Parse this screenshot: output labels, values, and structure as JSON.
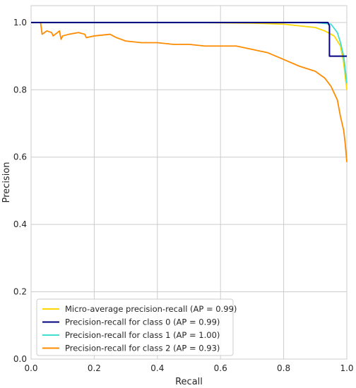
{
  "chart_data": {
    "type": "line",
    "title": "",
    "xlabel": "Recall",
    "ylabel": "Precision",
    "xlim": [
      0.0,
      1.0
    ],
    "ylim": [
      0.0,
      1.05
    ],
    "xticks": [
      "0.0",
      "0.2",
      "0.4",
      "0.6",
      "0.8",
      "1.0"
    ],
    "yticks": [
      "0.0",
      "0.2",
      "0.4",
      "0.6",
      "0.8",
      "1.0"
    ],
    "grid": true,
    "legend_position": "lower-left",
    "series": [
      {
        "name": "Micro-average precision-recall (AP = 0.99)",
        "color": "#ffd700",
        "x": [
          0.0,
          0.5,
          0.7,
          0.8,
          0.85,
          0.9,
          0.93,
          0.96,
          0.98,
          0.99,
          1.0
        ],
        "y": [
          1.0,
          1.0,
          0.998,
          0.995,
          0.99,
          0.985,
          0.975,
          0.96,
          0.93,
          0.88,
          0.8
        ]
      },
      {
        "name": "Precision-recall for class 0 (AP = 0.99)",
        "color": "#000080",
        "x": [
          0.0,
          0.94,
          0.945,
          0.945,
          0.99,
          1.0
        ],
        "y": [
          1.0,
          1.0,
          0.99,
          0.9,
          0.9,
          0.9
        ]
      },
      {
        "name": "Precision-recall for class 1 (AP = 1.00)",
        "color": "#40e0d0",
        "x": [
          0.0,
          0.9,
          0.95,
          0.97,
          0.98,
          0.99,
          1.0
        ],
        "y": [
          1.0,
          1.0,
          0.995,
          0.97,
          0.94,
          0.9,
          0.82
        ]
      },
      {
        "name": "Precision-recall for class 2 (AP = 0.93)",
        "color": "#ff8c00",
        "x": [
          0.0,
          0.03,
          0.035,
          0.05,
          0.065,
          0.07,
          0.09,
          0.095,
          0.1,
          0.12,
          0.15,
          0.17,
          0.175,
          0.2,
          0.25,
          0.27,
          0.3,
          0.35,
          0.4,
          0.45,
          0.5,
          0.55,
          0.6,
          0.65,
          0.7,
          0.75,
          0.8,
          0.85,
          0.9,
          0.93,
          0.95,
          0.97,
          0.98,
          0.99,
          0.995,
          1.0
        ],
        "y": [
          1.0,
          1.0,
          0.965,
          0.975,
          0.97,
          0.96,
          0.975,
          0.95,
          0.96,
          0.965,
          0.97,
          0.965,
          0.955,
          0.96,
          0.965,
          0.955,
          0.945,
          0.94,
          0.94,
          0.935,
          0.935,
          0.93,
          0.93,
          0.93,
          0.92,
          0.91,
          0.89,
          0.87,
          0.855,
          0.835,
          0.81,
          0.77,
          0.72,
          0.68,
          0.64,
          0.585
        ]
      }
    ]
  }
}
